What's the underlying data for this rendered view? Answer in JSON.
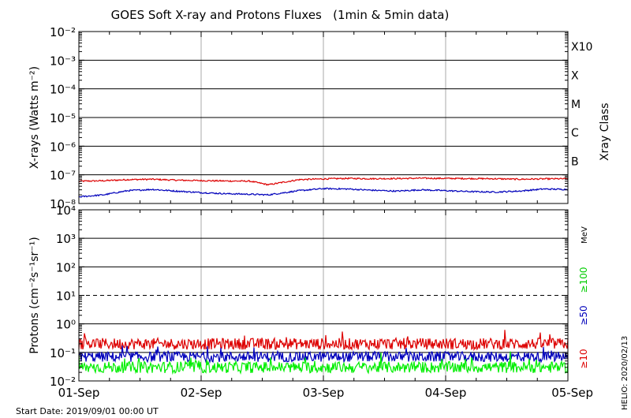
{
  "chart_data": {
    "type": "line",
    "title": "GOES Soft X-ray and Protons Fluxes   (1min & 5min data)",
    "start_date": "Start Date: 2019/09/01 00:00 UT",
    "credit": "HELIO: 2020/02/13",
    "x": {
      "tick_labels": [
        "01-Sep",
        "02-Sep",
        "03-Sep",
        "04-Sep",
        "05-Sep"
      ],
      "range_days": [
        0,
        4
      ]
    },
    "panels": [
      {
        "name": "xray",
        "ylabel": "X-rays (Watts m⁻²)",
        "ylim_log10": [
          -8,
          -2
        ],
        "scale": "log",
        "tick_labels": [
          "10⁻⁸",
          "10⁻⁷",
          "10⁻⁶",
          "10⁻⁵",
          "10⁻⁴",
          "10⁻³",
          "10⁻²"
        ],
        "right_axis_title": "Xray Class",
        "classes": [
          {
            "label": "B",
            "log10": -7
          },
          {
            "label": "C",
            "log10": -6
          },
          {
            "label": "M",
            "log10": -5
          },
          {
            "label": "X",
            "log10": -4
          },
          {
            "label": "X10",
            "log10": -3
          }
        ],
        "series": [
          {
            "color": "#dd0000",
            "x_days": [
              0.0,
              0.2,
              0.4,
              0.6,
              0.8,
              1.0,
              1.2,
              1.4,
              1.55,
              1.8,
              2.0,
              2.2,
              2.4,
              2.6,
              2.8,
              3.0,
              3.2,
              3.4,
              3.6,
              3.8,
              4.0
            ],
            "values": [
              6e-08,
              6.2e-08,
              6.8e-08,
              7e-08,
              6.5e-08,
              6.3e-08,
              6.1e-08,
              6e-08,
              4.5e-08,
              6.8e-08,
              7.2e-08,
              7.5e-08,
              7.3e-08,
              7.4e-08,
              7.6e-08,
              7.5e-08,
              7.4e-08,
              7.3e-08,
              7e-08,
              7.2e-08,
              7.3e-08
            ]
          },
          {
            "color": "#0000bb",
            "x_days": [
              0.0,
              0.2,
              0.4,
              0.6,
              0.8,
              1.0,
              1.2,
              1.4,
              1.55,
              1.8,
              2.0,
              2.2,
              2.4,
              2.6,
              2.8,
              3.0,
              3.2,
              3.4,
              3.6,
              3.8,
              4.0
            ],
            "values": [
              1.7e-08,
              2e-08,
              2.8e-08,
              3.1e-08,
              2.7e-08,
              2.4e-08,
              2.2e-08,
              2.1e-08,
              2e-08,
              2.8e-08,
              3.3e-08,
              3.2e-08,
              2.9e-08,
              2.7e-08,
              3e-08,
              2.8e-08,
              2.6e-08,
              2.5e-08,
              2.7e-08,
              3.2e-08,
              3.1e-08
            ]
          }
        ]
      },
      {
        "name": "protons",
        "ylabel": "Protons (cm⁻²s⁻¹sr⁻¹)",
        "ylim_log10": [
          -2,
          4
        ],
        "scale": "log",
        "tick_labels": [
          "10⁻²",
          "10⁻¹",
          "10⁰",
          "10¹",
          "10²",
          "10³",
          "10⁴"
        ],
        "threshold_log10": 1,
        "right_labels": [
          {
            "text": "MeV",
            "color": "#000000"
          },
          {
            "text": "≥100",
            "color": "#00cc00"
          },
          {
            "text": "≥50",
            "color": "#0000bb"
          },
          {
            "text": "≥10",
            "color": "#dd0000"
          }
        ],
        "series": [
          {
            "name": "≥10",
            "color": "#dd0000",
            "baseline": 0.2,
            "spread_log10": 0.2
          },
          {
            "name": "≥50",
            "color": "#0000bb",
            "baseline": 0.07,
            "spread_log10": 0.18
          },
          {
            "name": "≥100",
            "color": "#00ee00",
            "baseline": 0.03,
            "spread_log10": 0.2
          }
        ]
      }
    ]
  }
}
